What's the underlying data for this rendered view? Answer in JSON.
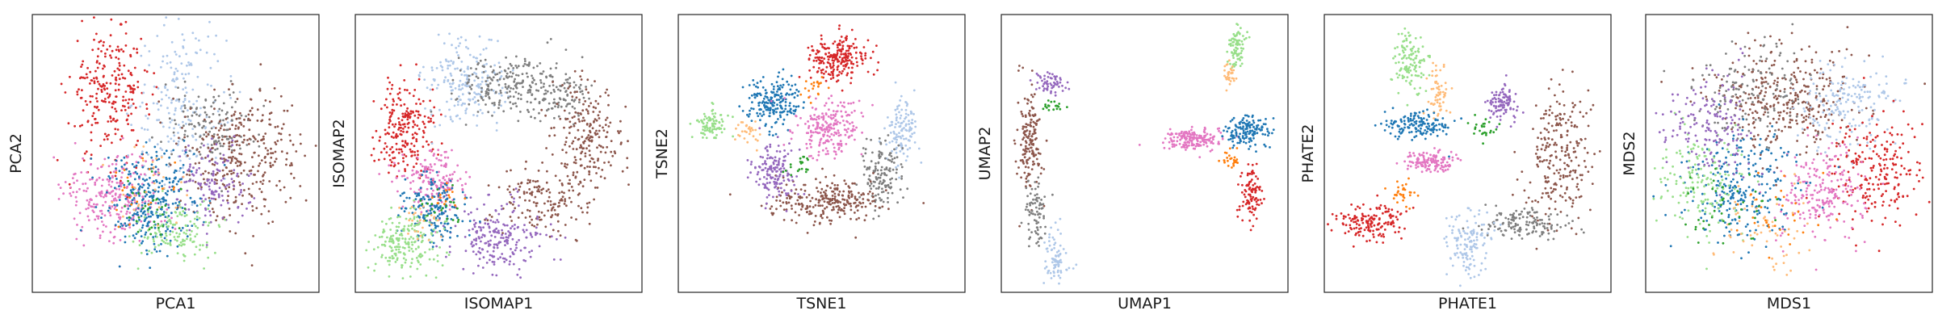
{
  "figure": {
    "palette": [
      "#1f77b4",
      "#aec7e8",
      "#ff7f0e",
      "#ffbb78",
      "#2ca02c",
      "#98df8a",
      "#d62728",
      "#ff9896",
      "#9467bd",
      "#c5b0d5",
      "#8c564b",
      "#c49c94",
      "#e377c2",
      "#f7b6d2",
      "#7f7f7f",
      "#c7c7c7"
    ]
  },
  "chart_data": [
    {
      "type": "scatter",
      "xlabel": "PCA1",
      "ylabel": "PCA2",
      "ticks": "none",
      "xlim": [
        0,
        100
      ],
      "ylim": [
        0,
        100
      ],
      "series": [
        {
          "color": "#d62728",
          "clusters": [
            {
              "cx": 27,
              "cy": 72,
              "sx": 7,
              "sy": 12,
              "n": 260
            }
          ]
        },
        {
          "color": "#aec7e8",
          "clusters": [
            {
              "cx": 52,
              "cy": 68,
              "sx": 8,
              "sy": 14,
              "n": 200
            }
          ]
        },
        {
          "color": "#7f7f7f",
          "clusters": [
            {
              "cx": 62,
              "cy": 60,
              "sx": 8,
              "sy": 8,
              "n": 140
            }
          ]
        },
        {
          "color": "#8c564b",
          "clusters": [
            {
              "cx": 74,
              "cy": 50,
              "sx": 10,
              "sy": 12,
              "n": 320
            }
          ]
        },
        {
          "color": "#9467bd",
          "clusters": [
            {
              "cx": 63,
              "cy": 38,
              "sx": 7,
              "sy": 7,
              "n": 140
            }
          ]
        },
        {
          "color": "#e377c2",
          "clusters": [
            {
              "cx": 28,
              "cy": 35,
              "sx": 9,
              "sy": 8,
              "n": 260
            }
          ]
        },
        {
          "color": "#1f77b4",
          "clusters": [
            {
              "cx": 42,
              "cy": 33,
              "sx": 8,
              "sy": 9,
              "n": 300
            }
          ]
        },
        {
          "color": "#98df8a",
          "clusters": [
            {
              "cx": 50,
              "cy": 22,
              "sx": 7,
              "sy": 5,
              "n": 130
            }
          ]
        },
        {
          "color": "#2ca02c",
          "clusters": [
            {
              "cx": 40,
              "cy": 28,
              "sx": 6,
              "sy": 6,
              "n": 30
            }
          ]
        },
        {
          "color": "#ffbb78",
          "clusters": [
            {
              "cx": 40,
              "cy": 40,
              "sx": 8,
              "sy": 8,
              "n": 30
            }
          ]
        },
        {
          "color": "#ff7f0e",
          "clusters": [
            {
              "cx": 38,
              "cy": 36,
              "sx": 6,
              "sy": 6,
              "n": 20
            }
          ]
        }
      ]
    },
    {
      "type": "scatter",
      "xlabel": "ISOMAP1",
      "ylabel": "ISOMAP2",
      "ticks": "none",
      "xlim": [
        0,
        100
      ],
      "ylim": [
        0,
        100
      ],
      "series": [
        {
          "color": "#d62728",
          "clusters": [
            {
              "cx": 18,
              "cy": 58,
              "sx": 5,
              "sy": 9,
              "n": 220
            }
          ]
        },
        {
          "color": "#aec7e8",
          "clusters": [
            {
              "cx": 38,
              "cy": 75,
              "sx": 7,
              "sy": 8,
              "n": 200
            }
          ]
        },
        {
          "color": "#7f7f7f",
          "clusters": [
            {
              "cx": 55,
              "cy": 75,
              "sx": 10,
              "sy": 5,
              "n": 220
            },
            {
              "cx": 72,
              "cy": 70,
              "sx": 5,
              "sy": 4,
              "n": 80
            }
          ]
        },
        {
          "color": "#8c564b",
          "clusters": [
            {
              "cx": 80,
              "cy": 55,
              "sx": 6,
              "sy": 10,
              "n": 220
            },
            {
              "cx": 65,
              "cy": 32,
              "sx": 9,
              "sy": 6,
              "n": 150
            }
          ]
        },
        {
          "color": "#9467bd",
          "clusters": [
            {
              "cx": 50,
              "cy": 20,
              "sx": 8,
              "sy": 7,
              "n": 220
            }
          ]
        },
        {
          "color": "#e377c2",
          "clusters": [
            {
              "cx": 27,
              "cy": 40,
              "sx": 6,
              "sy": 6,
              "n": 170
            }
          ]
        },
        {
          "color": "#1f77b4",
          "clusters": [
            {
              "cx": 27,
              "cy": 30,
              "sx": 6,
              "sy": 6,
              "n": 170
            }
          ]
        },
        {
          "color": "#98df8a",
          "clusters": [
            {
              "cx": 18,
              "cy": 18,
              "sx": 6,
              "sy": 6,
              "n": 200
            }
          ]
        },
        {
          "color": "#2ca02c",
          "clusters": [
            {
              "cx": 30,
              "cy": 30,
              "sx": 4,
              "sy": 4,
              "n": 20
            }
          ]
        },
        {
          "color": "#ffbb78",
          "clusters": [
            {
              "cx": 22,
              "cy": 26,
              "sx": 4,
              "sy": 4,
              "n": 25
            }
          ]
        },
        {
          "color": "#ff7f0e",
          "clusters": [
            {
              "cx": 30,
              "cy": 34,
              "sx": 3,
              "sy": 3,
              "n": 15
            }
          ]
        }
      ]
    },
    {
      "type": "scatter",
      "xlabel": "TSNE1",
      "ylabel": "TSNE2",
      "ticks": "none",
      "xlim": [
        0,
        100
      ],
      "ylim": [
        0,
        100
      ],
      "series": [
        {
          "color": "#d62728",
          "clusters": [
            {
              "cx": 55,
              "cy": 84,
              "sx": 5,
              "sy": 4,
              "n": 220
            }
          ]
        },
        {
          "color": "#1f77b4",
          "clusters": [
            {
              "cx": 33,
              "cy": 68,
              "sx": 5,
              "sy": 5,
              "n": 200
            }
          ]
        },
        {
          "color": "#e377c2",
          "clusters": [
            {
              "cx": 52,
              "cy": 60,
              "sx": 6,
              "sy": 5,
              "n": 220
            }
          ]
        },
        {
          "color": "#98df8a",
          "clusters": [
            {
              "cx": 12,
              "cy": 60,
              "sx": 3,
              "sy": 3,
              "n": 90
            }
          ]
        },
        {
          "color": "#ffbb78",
          "clusters": [
            {
              "cx": 24,
              "cy": 58,
              "sx": 3,
              "sy": 3,
              "n": 30
            }
          ]
        },
        {
          "color": "#ff7f0e",
          "clusters": [
            {
              "cx": 47,
              "cy": 74,
              "sx": 2,
              "sy": 2,
              "n": 20
            }
          ]
        },
        {
          "color": "#aec7e8",
          "clusters": [
            {
              "cx": 78,
              "cy": 58,
              "sx": 3,
              "sy": 6,
              "n": 120
            }
          ]
        },
        {
          "color": "#7f7f7f",
          "clusters": [
            {
              "cx": 71,
              "cy": 42,
              "sx": 4,
              "sy": 6,
              "n": 140
            }
          ]
        },
        {
          "color": "#8c564b",
          "clusters": [
            {
              "cx": 52,
              "cy": 33,
              "sx": 10,
              "sy": 4,
              "n": 260
            }
          ]
        },
        {
          "color": "#9467bd",
          "clusters": [
            {
              "cx": 33,
              "cy": 43,
              "sx": 4,
              "sy": 5,
              "n": 150
            }
          ]
        },
        {
          "color": "#2ca02c",
          "clusters": [
            {
              "cx": 42,
              "cy": 45,
              "sx": 2,
              "sy": 2,
              "n": 20
            }
          ]
        }
      ]
    },
    {
      "type": "scatter",
      "xlabel": "UMAP1",
      "ylabel": "UMAP2",
      "ticks": "none",
      "xlim": [
        0,
        100
      ],
      "ylim": [
        0,
        100
      ],
      "series": [
        {
          "color": "#9467bd",
          "clusters": [
            {
              "cx": 17,
              "cy": 75,
              "sx": 3,
              "sy": 2,
              "n": 60
            }
          ]
        },
        {
          "color": "#8c564b",
          "clusters": [
            {
              "cx": 10,
              "cy": 55,
              "sx": 2,
              "sy": 10,
              "n": 160
            }
          ]
        },
        {
          "color": "#7f7f7f",
          "clusters": [
            {
              "cx": 12,
              "cy": 30,
              "sx": 2,
              "sy": 6,
              "n": 80
            }
          ]
        },
        {
          "color": "#aec7e8",
          "clusters": [
            {
              "cx": 19,
              "cy": 12,
              "sx": 2,
              "sy": 5,
              "n": 80
            }
          ]
        },
        {
          "color": "#2ca02c",
          "clusters": [
            {
              "cx": 18,
              "cy": 67,
              "sx": 2,
              "sy": 1,
              "n": 20
            }
          ]
        },
        {
          "color": "#98df8a",
          "clusters": [
            {
              "cx": 82,
              "cy": 88,
              "sx": 1.5,
              "sy": 4,
              "n": 80
            }
          ]
        },
        {
          "color": "#ffbb78",
          "clusters": [
            {
              "cx": 80,
              "cy": 78,
              "sx": 1.2,
              "sy": 2,
              "n": 30
            }
          ]
        },
        {
          "color": "#e377c2",
          "clusters": [
            {
              "cx": 67,
              "cy": 55,
              "sx": 5,
              "sy": 2,
              "n": 180
            }
          ]
        },
        {
          "color": "#1f77b4",
          "clusters": [
            {
              "cx": 86,
              "cy": 58,
              "sx": 4,
              "sy": 3,
              "n": 150
            }
          ]
        },
        {
          "color": "#ff7f0e",
          "clusters": [
            {
              "cx": 80,
              "cy": 48,
              "sx": 2,
              "sy": 2,
              "n": 25
            }
          ]
        },
        {
          "color": "#d62728",
          "clusters": [
            {
              "cx": 87,
              "cy": 36,
              "sx": 2,
              "sy": 5,
              "n": 100
            }
          ]
        }
      ]
    },
    {
      "type": "scatter",
      "xlabel": "PHATE1",
      "ylabel": "PHATE2",
      "ticks": "none",
      "xlim": [
        0,
        100
      ],
      "ylim": [
        0,
        100
      ],
      "series": [
        {
          "color": "#98df8a",
          "clusters": [
            {
              "cx": 30,
              "cy": 83,
              "sx": 3,
              "sy": 6,
              "n": 120
            }
          ]
        },
        {
          "color": "#ffbb78",
          "clusters": [
            {
              "cx": 40,
              "cy": 72,
              "sx": 2,
              "sy": 5,
              "n": 60
            }
          ]
        },
        {
          "color": "#1f77b4",
          "clusters": [
            {
              "cx": 32,
              "cy": 60,
              "sx": 6,
              "sy": 2.5,
              "n": 150
            }
          ]
        },
        {
          "color": "#e377c2",
          "clusters": [
            {
              "cx": 37,
              "cy": 47,
              "sx": 5,
              "sy": 2,
              "n": 130
            }
          ]
        },
        {
          "color": "#9467bd",
          "clusters": [
            {
              "cx": 62,
              "cy": 68,
              "sx": 3,
              "sy": 3,
              "n": 100
            }
          ]
        },
        {
          "color": "#8c564b",
          "clusters": [
            {
              "cx": 82,
              "cy": 50,
              "sx": 6,
              "sy": 12,
              "n": 240
            }
          ]
        },
        {
          "color": "#7f7f7f",
          "clusters": [
            {
              "cx": 70,
              "cy": 25,
              "sx": 7,
              "sy": 3,
              "n": 140
            }
          ]
        },
        {
          "color": "#aec7e8",
          "clusters": [
            {
              "cx": 50,
              "cy": 18,
              "sx": 4,
              "sy": 6,
              "n": 130
            }
          ]
        },
        {
          "color": "#d62728",
          "clusters": [
            {
              "cx": 16,
              "cy": 25,
              "sx": 6,
              "sy": 3,
              "n": 160
            }
          ]
        },
        {
          "color": "#ff7f0e",
          "clusters": [
            {
              "cx": 28,
              "cy": 36,
              "sx": 2,
              "sy": 2,
              "n": 30
            }
          ]
        },
        {
          "color": "#2ca02c",
          "clusters": [
            {
              "cx": 55,
              "cy": 60,
              "sx": 2,
              "sy": 2,
              "n": 25
            }
          ]
        }
      ]
    },
    {
      "type": "scatter",
      "xlabel": "MDS1",
      "ylabel": "MDS2",
      "ticks": "none",
      "xlim": [
        0,
        100
      ],
      "ylim": [
        0,
        100
      ],
      "series": [
        {
          "color": "#8c564b",
          "clusters": [
            {
              "cx": 48,
              "cy": 70,
              "sx": 13,
              "sy": 9,
              "n": 340
            }
          ]
        },
        {
          "color": "#aec7e8",
          "clusters": [
            {
              "cx": 70,
              "cy": 68,
              "sx": 9,
              "sy": 8,
              "n": 180
            }
          ]
        },
        {
          "color": "#7f7f7f",
          "clusters": [
            {
              "cx": 38,
              "cy": 72,
              "sx": 10,
              "sy": 8,
              "n": 140
            }
          ]
        },
        {
          "color": "#d62728",
          "clusters": [
            {
              "cx": 80,
              "cy": 45,
              "sx": 8,
              "sy": 10,
              "n": 220
            }
          ]
        },
        {
          "color": "#e377c2",
          "clusters": [
            {
              "cx": 62,
              "cy": 35,
              "sx": 8,
              "sy": 9,
              "n": 220
            }
          ]
        },
        {
          "color": "#1f77b4",
          "clusters": [
            {
              "cx": 33,
              "cy": 38,
              "sx": 10,
              "sy": 10,
              "n": 260
            }
          ]
        },
        {
          "color": "#98df8a",
          "clusters": [
            {
              "cx": 20,
              "cy": 40,
              "sx": 8,
              "sy": 10,
              "n": 160
            }
          ]
        },
        {
          "color": "#9467bd",
          "clusters": [
            {
              "cx": 22,
              "cy": 60,
              "sx": 8,
              "sy": 9,
              "n": 160
            }
          ]
        },
        {
          "color": "#ffbb78",
          "clusters": [
            {
              "cx": 40,
              "cy": 25,
              "sx": 8,
              "sy": 8,
              "n": 60
            }
          ]
        },
        {
          "color": "#2ca02c",
          "clusters": [
            {
              "cx": 30,
              "cy": 30,
              "sx": 8,
              "sy": 8,
              "n": 40
            }
          ]
        },
        {
          "color": "#ff7f0e",
          "clusters": [
            {
              "cx": 45,
              "cy": 30,
              "sx": 8,
              "sy": 8,
              "n": 30
            }
          ]
        }
      ]
    }
  ]
}
